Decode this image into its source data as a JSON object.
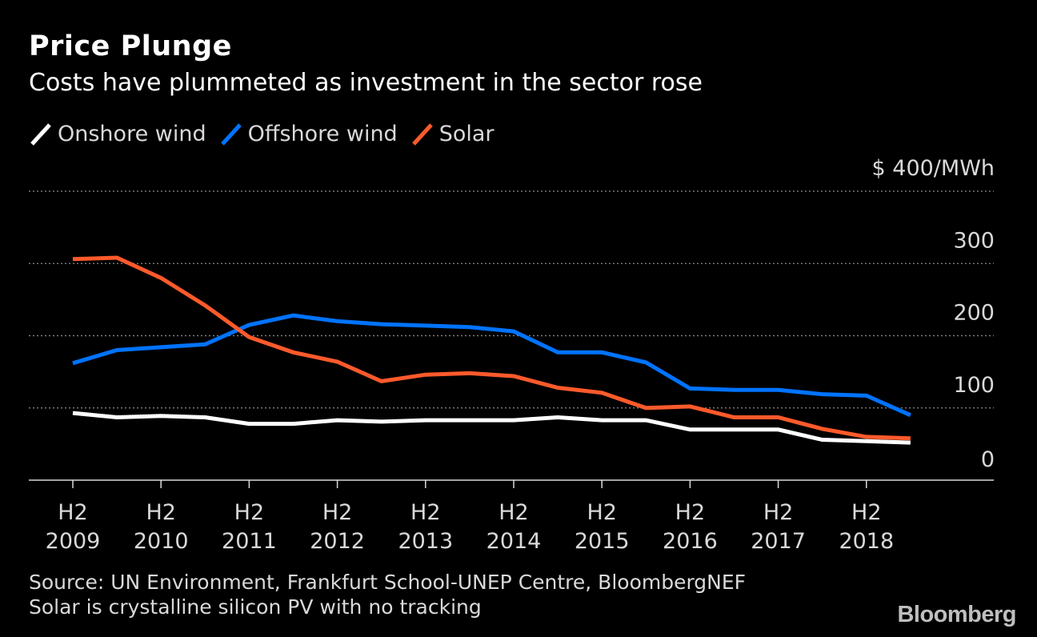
{
  "chart_data": {
    "type": "line",
    "title": "Price Plunge",
    "subtitle": "Costs have plummeted as investment in the sector rose",
    "y_unit_label": "$ 400/MWh",
    "ylim": [
      0,
      400
    ],
    "y_ticks": [
      {
        "value": 0,
        "label": "0"
      },
      {
        "value": 100,
        "label": "100"
      },
      {
        "value": 200,
        "label": "200"
      },
      {
        "value": 300,
        "label": "300"
      },
      {
        "value": 400,
        "label": "$ 400/MWh"
      }
    ],
    "grid": "horizontal dotted",
    "legend_position": "top-left",
    "x": [
      "H2 2009",
      "H1 2010",
      "H2 2010",
      "H1 2011",
      "H2 2011",
      "H1 2012",
      "H2 2012",
      "H1 2013",
      "H2 2013",
      "H1 2014",
      "H2 2014",
      "H1 2015",
      "H2 2015",
      "H1 2016",
      "H2 2016",
      "H1 2017",
      "H2 2017",
      "H1 2018",
      "H2 2018",
      "H1 2019"
    ],
    "x_tick_labels": [
      {
        "line1": "H2",
        "line2": "2009"
      },
      {
        "line1": "H2",
        "line2": "2010"
      },
      {
        "line1": "H2",
        "line2": "2011"
      },
      {
        "line1": "H2",
        "line2": "2012"
      },
      {
        "line1": "H2",
        "line2": "2013"
      },
      {
        "line1": "H2",
        "line2": "2014"
      },
      {
        "line1": "H2",
        "line2": "2015"
      },
      {
        "line1": "H2",
        "line2": "2016"
      },
      {
        "line1": "H2",
        "line2": "2017"
      },
      {
        "line1": "H2",
        "line2": "2018"
      }
    ],
    "series": [
      {
        "name": "Onshore wind",
        "color": "#ffffff",
        "values": [
          93,
          87,
          89,
          87,
          78,
          78,
          83,
          81,
          83,
          83,
          83,
          87,
          83,
          83,
          70,
          70,
          70,
          56,
          54,
          52
        ]
      },
      {
        "name": "Offshore wind",
        "color": "#0073ff",
        "values": [
          162,
          180,
          184,
          188,
          215,
          228,
          220,
          216,
          214,
          212,
          206,
          177,
          177,
          163,
          127,
          125,
          125,
          119,
          117,
          90
        ]
      },
      {
        "name": "Solar",
        "color": "#ff5a2b",
        "values": [
          306,
          308,
          280,
          242,
          198,
          177,
          164,
          137,
          146,
          148,
          144,
          128,
          121,
          100,
          102,
          87,
          87,
          71,
          60,
          58
        ]
      }
    ],
    "source": "Source: UN Environment, Frankfurt School-UNEP Centre, BloombergNEF",
    "note": "Solar is crystalline silicon PV with no tracking",
    "brand": "Bloomberg"
  }
}
